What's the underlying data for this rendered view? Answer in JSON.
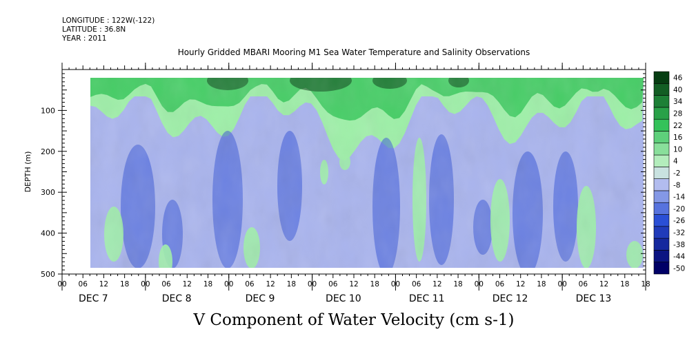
{
  "header": {
    "longitude": "LONGITUDE : 122W(-122)",
    "latitude": "LATITUDE : 36.8N",
    "year": "YEAR : 2011"
  },
  "chart_data": {
    "type": "heatmap",
    "title": "Hourly Gridded MBARI Mooring M1 Sea Water Temperature and Salinity Observations",
    "xlabel": "",
    "ylabel": "DEPTH (m)",
    "colorbar_title": "V Component of Water Velocity (cm s-1)",
    "y_range": [
      0,
      500
    ],
    "y_ticks": [
      100,
      200,
      300,
      400,
      500
    ],
    "y_tick_labels": [
      "100",
      "200",
      "300",
      "400",
      "500"
    ],
    "y_inverted": true,
    "x_hour_labels": [
      "00",
      "06",
      "12",
      "18",
      "00",
      "06",
      "12",
      "18",
      "00",
      "06",
      "12",
      "18",
      "00",
      "06",
      "12",
      "18",
      "00",
      "06",
      "12",
      "18",
      "00",
      "06",
      "12",
      "18",
      "00",
      "06",
      "12",
      "18",
      "18"
    ],
    "x_day_labels": [
      "DEC 7",
      "DEC 8",
      "DEC 9",
      "DEC 10",
      "DEC 11",
      "DEC 12",
      "DEC 13"
    ],
    "colorbar_levels": [
      -50,
      -44,
      -38,
      -32,
      -26,
      -20,
      -14,
      -8,
      -2,
      4,
      10,
      16,
      22,
      28,
      34,
      40,
      46
    ],
    "colorbar_tick_labels": [
      "46",
      "40",
      "34",
      "28",
      "22",
      "16",
      "10",
      "4",
      "-2",
      "-8",
      "-14",
      "-20",
      "-26",
      "-32",
      "-38",
      "-44",
      "-50"
    ],
    "colors": {
      "strong_negative": "#000066",
      "negative": "#3a5ad8",
      "weak_negative": "#a9b4ee",
      "weak_positive": "#9ef0a8",
      "positive": "#36c85a",
      "strong_positive": "#063d12"
    },
    "pattern_note_values": {
      "surface_velocity_typical": 20,
      "deep_velocity_typical": -10
    }
  }
}
